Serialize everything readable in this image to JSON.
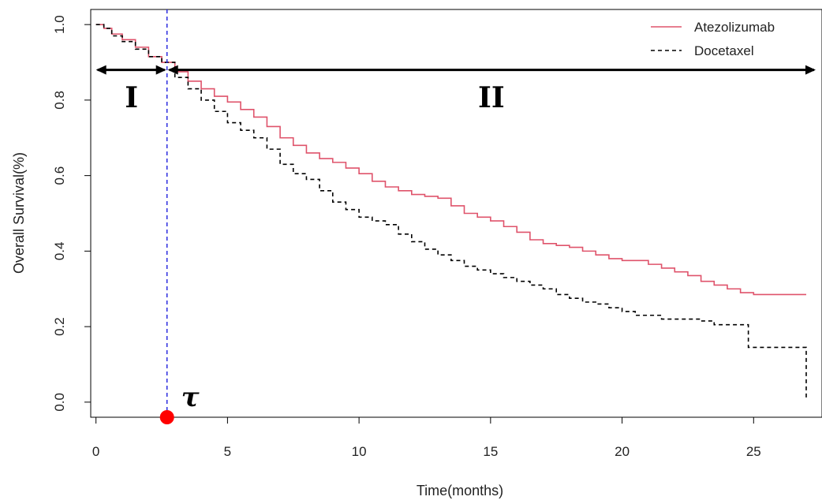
{
  "chart_data": {
    "type": "line",
    "xlabel": "Time(months)",
    "ylabel": "Overall Survival(%)",
    "xlim": [
      -0.2,
      27.6
    ],
    "ylim": [
      -0.04,
      1.04
    ],
    "x_ticks": [
      "0",
      "5",
      "10",
      "15",
      "20",
      "25"
    ],
    "y_ticks": [
      "0.0",
      "0.2",
      "0.4",
      "0.6",
      "0.8",
      "1.0"
    ],
    "legend_position": "top-right",
    "series": [
      {
        "name": "Atezolizumab",
        "color": "#df536b",
        "line_style": "solid",
        "x": [
          0,
          0.3,
          0.6,
          1.0,
          1.5,
          2.0,
          2.5,
          3.0,
          3.5,
          4.0,
          4.5,
          5.0,
          5.5,
          6.0,
          6.5,
          7.0,
          7.5,
          8.0,
          8.5,
          9.0,
          9.5,
          10.0,
          10.5,
          11.0,
          11.5,
          12.0,
          12.5,
          13.0,
          13.5,
          14.0,
          14.5,
          15.0,
          15.5,
          16.0,
          16.5,
          17.0,
          17.5,
          18.0,
          18.5,
          19.0,
          19.5,
          20.0,
          20.5,
          21.0,
          21.5,
          22.0,
          22.5,
          23.0,
          23.5,
          24.0,
          24.5,
          25.0,
          25.5,
          26.0,
          26.5,
          27.0
        ],
        "y": [
          1.0,
          0.99,
          0.975,
          0.96,
          0.94,
          0.915,
          0.9,
          0.875,
          0.85,
          0.83,
          0.81,
          0.795,
          0.775,
          0.755,
          0.73,
          0.7,
          0.68,
          0.66,
          0.645,
          0.635,
          0.62,
          0.605,
          0.585,
          0.57,
          0.56,
          0.55,
          0.545,
          0.54,
          0.52,
          0.5,
          0.49,
          0.48,
          0.465,
          0.45,
          0.43,
          0.42,
          0.415,
          0.41,
          0.4,
          0.39,
          0.38,
          0.375,
          0.375,
          0.365,
          0.355,
          0.345,
          0.335,
          0.32,
          0.31,
          0.3,
          0.29,
          0.285,
          0.285,
          0.285,
          0.285,
          0.285
        ]
      },
      {
        "name": "Docetaxel",
        "color": "#000000",
        "line_style": "dashed",
        "x": [
          0,
          0.3,
          0.6,
          1.0,
          1.5,
          2.0,
          2.5,
          3.0,
          3.5,
          4.0,
          4.5,
          5.0,
          5.5,
          6.0,
          6.5,
          7.0,
          7.5,
          8.0,
          8.5,
          9.0,
          9.5,
          10.0,
          10.5,
          11.0,
          11.5,
          12.0,
          12.5,
          13.0,
          13.5,
          14.0,
          14.5,
          15.0,
          15.5,
          16.0,
          16.5,
          17.0,
          17.5,
          18.0,
          18.5,
          19.0,
          19.5,
          20.0,
          20.5,
          21.0,
          21.5,
          22.0,
          22.5,
          23.0,
          23.5,
          24.0,
          24.5,
          24.8,
          25.0,
          25.5,
          26.0,
          26.5,
          26.95,
          27.0
        ],
        "y": [
          1.0,
          0.99,
          0.97,
          0.955,
          0.935,
          0.915,
          0.9,
          0.86,
          0.83,
          0.8,
          0.77,
          0.74,
          0.72,
          0.7,
          0.67,
          0.63,
          0.605,
          0.59,
          0.56,
          0.53,
          0.51,
          0.49,
          0.48,
          0.47,
          0.445,
          0.425,
          0.405,
          0.39,
          0.375,
          0.36,
          0.35,
          0.34,
          0.33,
          0.32,
          0.31,
          0.3,
          0.285,
          0.275,
          0.265,
          0.26,
          0.25,
          0.24,
          0.23,
          0.23,
          0.22,
          0.22,
          0.22,
          0.215,
          0.205,
          0.205,
          0.205,
          0.145,
          0.145,
          0.145,
          0.145,
          0.145,
          0.145,
          0.005
        ]
      }
    ],
    "annotations": {
      "cutoff_x": 2.7,
      "cutoff_label": "τ",
      "region_labels": [
        "I",
        "II"
      ],
      "arrow_y": 0.88
    }
  }
}
